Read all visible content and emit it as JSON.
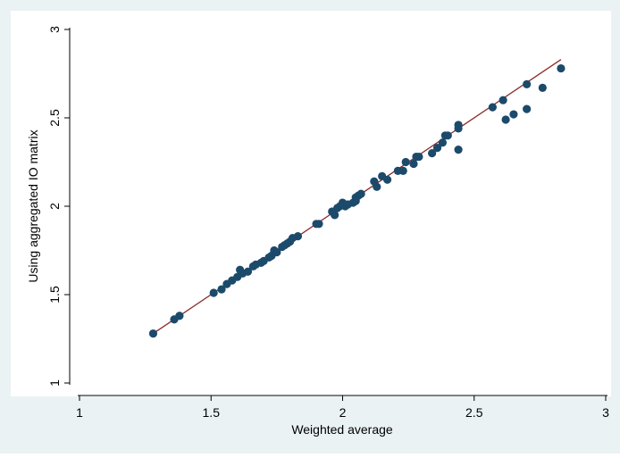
{
  "chart_data": {
    "type": "scatter",
    "xlabel": "Weighted average",
    "ylabel": "Using aggregated IO matrix",
    "xlim": [
      1,
      3
    ],
    "ylim": [
      1,
      3
    ],
    "xticks": [
      "1",
      "1.5",
      "2",
      "2.5",
      "3"
    ],
    "yticks": [
      "1",
      "1.5",
      "2",
      "2.5",
      "3"
    ],
    "grid": false,
    "legend": "none",
    "colors": {
      "background": "#eaf2f3",
      "plot_area": "#ffffff",
      "points": "#1c4a6b",
      "fit_line": "#8b2a2a"
    },
    "series": [
      {
        "values": [
          [
            1.28,
            1.28
          ],
          [
            1.36,
            1.36
          ],
          [
            1.38,
            1.38
          ],
          [
            1.51,
            1.51
          ],
          [
            1.54,
            1.53
          ],
          [
            1.56,
            1.56
          ],
          [
            1.58,
            1.58
          ],
          [
            1.6,
            1.6
          ],
          [
            1.61,
            1.64
          ],
          [
            1.62,
            1.62
          ],
          [
            1.64,
            1.63
          ],
          [
            1.66,
            1.66
          ],
          [
            1.67,
            1.67
          ],
          [
            1.69,
            1.68
          ],
          [
            1.7,
            1.69
          ],
          [
            1.72,
            1.71
          ],
          [
            1.73,
            1.72
          ],
          [
            1.74,
            1.75
          ],
          [
            1.75,
            1.74
          ],
          [
            1.77,
            1.77
          ],
          [
            1.78,
            1.78
          ],
          [
            1.79,
            1.79
          ],
          [
            1.8,
            1.8
          ],
          [
            1.81,
            1.82
          ],
          [
            1.83,
            1.83
          ],
          [
            1.9,
            1.9
          ],
          [
            1.91,
            1.9
          ],
          [
            1.96,
            1.97
          ],
          [
            1.97,
            1.95
          ],
          [
            1.98,
            1.99
          ],
          [
            1.99,
            2.0
          ],
          [
            2.0,
            2.02
          ],
          [
            2.01,
            2.0
          ],
          [
            2.02,
            2.01
          ],
          [
            2.04,
            2.02
          ],
          [
            2.05,
            2.05
          ],
          [
            2.06,
            2.06
          ],
          [
            2.05,
            2.03
          ],
          [
            2.07,
            2.07
          ],
          [
            2.12,
            2.14
          ],
          [
            2.13,
            2.11
          ],
          [
            2.15,
            2.17
          ],
          [
            2.17,
            2.15
          ],
          [
            2.21,
            2.2
          ],
          [
            2.23,
            2.2
          ],
          [
            2.24,
            2.25
          ],
          [
            2.27,
            2.24
          ],
          [
            2.28,
            2.28
          ],
          [
            2.29,
            2.28
          ],
          [
            2.34,
            2.3
          ],
          [
            2.36,
            2.33
          ],
          [
            2.38,
            2.36
          ],
          [
            2.39,
            2.4
          ],
          [
            2.4,
            2.4
          ],
          [
            2.44,
            2.46
          ],
          [
            2.44,
            2.44
          ],
          [
            2.44,
            2.32
          ],
          [
            2.57,
            2.56
          ],
          [
            2.61,
            2.6
          ],
          [
            2.62,
            2.49
          ],
          [
            2.65,
            2.52
          ],
          [
            2.7,
            2.69
          ],
          [
            2.7,
            2.55
          ],
          [
            2.76,
            2.67
          ],
          [
            2.83,
            2.78
          ]
        ]
      }
    ],
    "fit_line": [
      [
        1.28,
        1.28
      ],
      [
        2.83,
        2.83
      ]
    ]
  }
}
